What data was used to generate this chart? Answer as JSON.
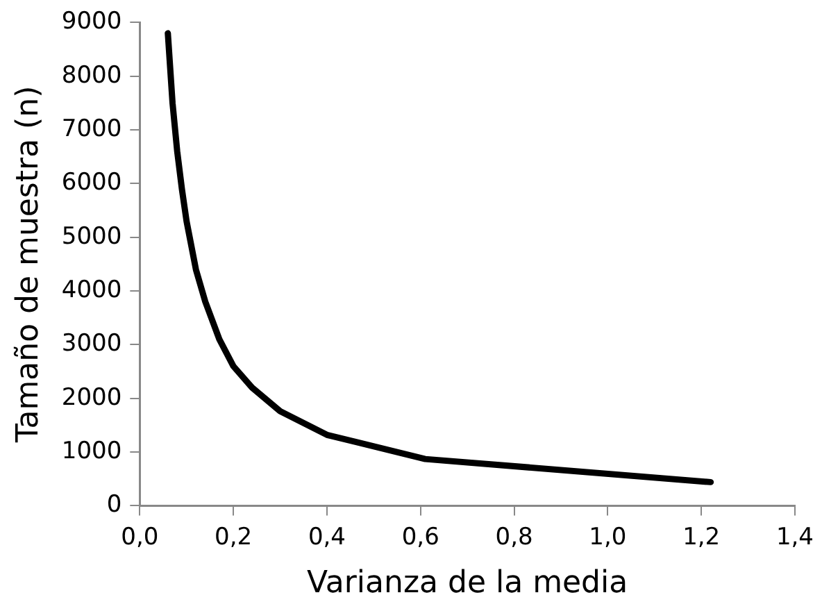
{
  "chart_data": {
    "type": "line",
    "xlabel": "Varianza de la media",
    "ylabel": "Tamaño de muestra (n)",
    "x": [
      0.06,
      0.07,
      0.08,
      0.09,
      0.1,
      0.12,
      0.14,
      0.17,
      0.2,
      0.24,
      0.3,
      0.4,
      0.61,
      1.22
    ],
    "series": [
      {
        "color": "#000000",
        "values": [
          8800,
          7500,
          6600,
          5900,
          5300,
          4400,
          3800,
          3100,
          2600,
          2200,
          1760,
          1320,
          870,
          440
        ]
      }
    ],
    "xlim": [
      0,
      1.4
    ],
    "xticks": [
      {
        "value": 0,
        "label": "0,0"
      },
      {
        "value": 0.2,
        "label": "0,2"
      },
      {
        "value": 0.4,
        "label": "0,4"
      },
      {
        "value": 0.6,
        "label": "0,6"
      },
      {
        "value": 0.8,
        "label": "0,8"
      },
      {
        "value": 1,
        "label": "1,0"
      },
      {
        "value": 1.2,
        "label": "1,2"
      },
      {
        "value": 1.4,
        "label": "1,4"
      }
    ],
    "ylim": [
      0,
      9000
    ],
    "yticks": [
      0,
      1000,
      2000,
      3000,
      4000,
      5000,
      6000,
      7000,
      8000,
      9000
    ],
    "grid": false,
    "legend": false,
    "marker": "none",
    "line_style": "solid"
  }
}
